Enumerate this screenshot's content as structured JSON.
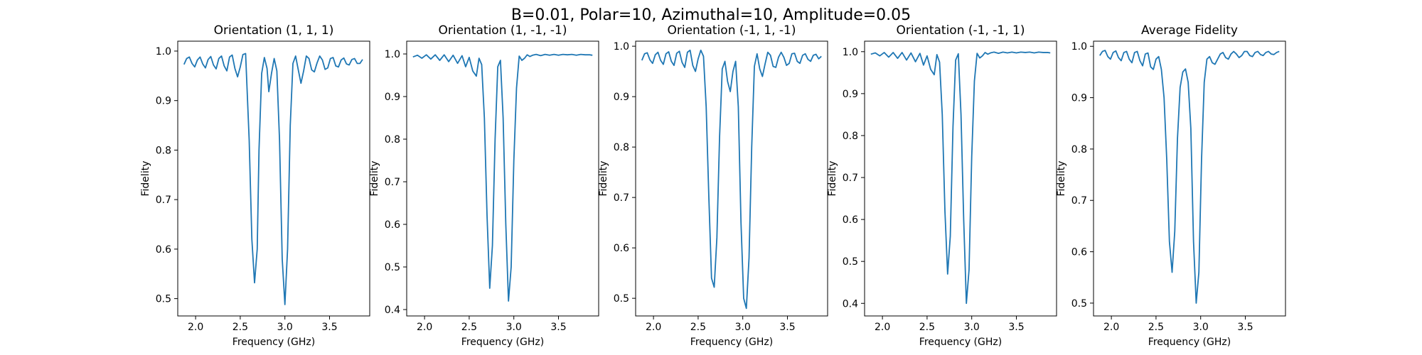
{
  "figure": {
    "suptitle": "B=0.01, Polar=10, Azimuthal=10, Amplitude=0.05"
  },
  "chart_data": [
    {
      "type": "line",
      "title": "Orientation (1, 1, 1)",
      "xlabel": "Frequency (GHz)",
      "ylabel": "Fidelity",
      "xlim": [
        1.8,
        3.95
      ],
      "ylim": [
        0.465,
        1.02
      ],
      "xticks": [
        2.0,
        2.5,
        3.0,
        3.5
      ],
      "xtick_labels": [
        "2.0",
        "2.5",
        "3.0",
        "3.5"
      ],
      "yticks": [
        0.5,
        0.6,
        0.7,
        0.8,
        0.9,
        1.0
      ],
      "ytick_labels": [
        "0.5",
        "0.6",
        "0.7",
        "0.8",
        "0.9",
        "1.0"
      ],
      "grid": false,
      "line_color": "#1f77b4",
      "series": [
        {
          "x": [
            1.87,
            1.9,
            1.93,
            1.96,
            1.99,
            2.02,
            2.05,
            2.08,
            2.11,
            2.14,
            2.17,
            2.2,
            2.23,
            2.26,
            2.29,
            2.32,
            2.35,
            2.38,
            2.41,
            2.44,
            2.47,
            2.5,
            2.53,
            2.56,
            2.6,
            2.63,
            2.66,
            2.69,
            2.71,
            2.74,
            2.77,
            2.8,
            2.82,
            2.85,
            2.88,
            2.91,
            2.94,
            2.97,
            3.0,
            3.03,
            3.06,
            3.09,
            3.12,
            3.15,
            3.18,
            3.21,
            3.24,
            3.27,
            3.3,
            3.33,
            3.36,
            3.39,
            3.42,
            3.45,
            3.48,
            3.51,
            3.54,
            3.57,
            3.6,
            3.63,
            3.66,
            3.69,
            3.72,
            3.75,
            3.78,
            3.81,
            3.84,
            3.87
          ],
          "y": [
            0.973,
            0.985,
            0.988,
            0.975,
            0.968,
            0.982,
            0.988,
            0.974,
            0.966,
            0.983,
            0.989,
            0.972,
            0.964,
            0.985,
            0.99,
            0.97,
            0.96,
            0.988,
            0.992,
            0.965,
            0.948,
            0.968,
            0.993,
            0.995,
            0.82,
            0.62,
            0.532,
            0.6,
            0.8,
            0.955,
            0.987,
            0.965,
            0.918,
            0.955,
            0.985,
            0.96,
            0.82,
            0.58,
            0.488,
            0.6,
            0.85,
            0.975,
            0.99,
            0.962,
            0.935,
            0.96,
            0.99,
            0.985,
            0.962,
            0.958,
            0.976,
            0.99,
            0.982,
            0.963,
            0.966,
            0.985,
            0.987,
            0.97,
            0.968,
            0.982,
            0.986,
            0.974,
            0.972,
            0.983,
            0.985,
            0.975,
            0.975,
            0.983
          ]
        }
      ]
    },
    {
      "type": "line",
      "title": "Orientation (1, -1, -1)",
      "xlabel": "Frequency (GHz)",
      "ylabel": "Fidelity",
      "xlim": [
        1.8,
        3.95
      ],
      "ylim": [
        0.385,
        1.03
      ],
      "xticks": [
        2.0,
        2.5,
        3.0,
        3.5
      ],
      "xtick_labels": [
        "2.0",
        "2.5",
        "3.0",
        "3.5"
      ],
      "yticks": [
        0.4,
        0.5,
        0.6,
        0.7,
        0.8,
        0.9,
        1.0
      ],
      "ytick_labels": [
        "0.4",
        "0.5",
        "0.6",
        "0.7",
        "0.8",
        "0.9",
        "1.0"
      ],
      "grid": false,
      "line_color": "#1f77b4",
      "series": [
        {
          "x": [
            1.87,
            1.92,
            1.97,
            2.02,
            2.07,
            2.12,
            2.17,
            2.22,
            2.27,
            2.32,
            2.37,
            2.42,
            2.46,
            2.5,
            2.54,
            2.58,
            2.61,
            2.64,
            2.67,
            2.7,
            2.73,
            2.76,
            2.79,
            2.82,
            2.85,
            2.88,
            2.91,
            2.94,
            2.97,
            3.0,
            3.03,
            3.06,
            3.09,
            3.12,
            3.15,
            3.18,
            3.21,
            3.25,
            3.3,
            3.35,
            3.4,
            3.45,
            3.5,
            3.55,
            3.6,
            3.65,
            3.7,
            3.75,
            3.8,
            3.85,
            3.88
          ],
          "y": [
            0.993,
            0.997,
            0.99,
            0.998,
            0.988,
            0.998,
            0.985,
            0.998,
            0.982,
            0.997,
            0.978,
            0.996,
            0.97,
            0.992,
            0.96,
            0.948,
            0.99,
            0.975,
            0.85,
            0.62,
            0.45,
            0.55,
            0.8,
            0.97,
            0.985,
            0.85,
            0.6,
            0.42,
            0.5,
            0.75,
            0.92,
            0.995,
            0.985,
            0.99,
            0.998,
            0.994,
            0.997,
            0.999,
            0.996,
            0.999,
            0.997,
            0.999,
            0.997,
            0.999,
            0.998,
            0.999,
            0.997,
            0.999,
            0.998,
            0.998,
            0.997
          ]
        }
      ]
    },
    {
      "type": "line",
      "title": "Orientation (-1, 1, -1)",
      "xlabel": "Frequency (GHz)",
      "ylabel": "Fidelity",
      "xlim": [
        1.8,
        3.95
      ],
      "ylim": [
        0.465,
        1.01
      ],
      "xticks": [
        2.0,
        2.5,
        3.0,
        3.5
      ],
      "xtick_labels": [
        "2.0",
        "2.5",
        "3.0",
        "3.5"
      ],
      "yticks": [
        0.5,
        0.6,
        0.7,
        0.8,
        0.9,
        1.0
      ],
      "ytick_labels": [
        "0.5",
        "0.6",
        "0.7",
        "0.8",
        "0.9",
        "1.0"
      ],
      "grid": false,
      "line_color": "#1f77b4",
      "series": [
        {
          "x": [
            1.87,
            1.9,
            1.93,
            1.96,
            1.99,
            2.02,
            2.05,
            2.08,
            2.11,
            2.14,
            2.17,
            2.2,
            2.23,
            2.26,
            2.29,
            2.32,
            2.35,
            2.38,
            2.41,
            2.44,
            2.47,
            2.5,
            2.53,
            2.56,
            2.59,
            2.62,
            2.65,
            2.68,
            2.71,
            2.74,
            2.77,
            2.8,
            2.83,
            2.86,
            2.89,
            2.92,
            2.95,
            2.98,
            3.01,
            3.04,
            3.07,
            3.1,
            3.13,
            3.16,
            3.19,
            3.22,
            3.25,
            3.28,
            3.31,
            3.34,
            3.37,
            3.4,
            3.43,
            3.46,
            3.49,
            3.52,
            3.55,
            3.58,
            3.61,
            3.64,
            3.67,
            3.7,
            3.73,
            3.76,
            3.79,
            3.82,
            3.85,
            3.88
          ],
          "y": [
            0.972,
            0.985,
            0.987,
            0.973,
            0.966,
            0.983,
            0.988,
            0.972,
            0.964,
            0.985,
            0.989,
            0.97,
            0.962,
            0.986,
            0.99,
            0.968,
            0.958,
            0.988,
            0.992,
            0.962,
            0.95,
            0.975,
            0.992,
            0.98,
            0.88,
            0.7,
            0.54,
            0.522,
            0.62,
            0.82,
            0.955,
            0.97,
            0.93,
            0.91,
            0.95,
            0.97,
            0.88,
            0.65,
            0.5,
            0.48,
            0.58,
            0.8,
            0.96,
            0.985,
            0.955,
            0.94,
            0.965,
            0.988,
            0.982,
            0.96,
            0.958,
            0.978,
            0.988,
            0.978,
            0.962,
            0.966,
            0.985,
            0.986,
            0.97,
            0.966,
            0.982,
            0.985,
            0.974,
            0.97,
            0.982,
            0.984,
            0.975,
            0.98
          ]
        }
      ]
    },
    {
      "type": "line",
      "title": "Orientation (-1, -1, 1)",
      "xlabel": "Frequency (GHz)",
      "ylabel": "Fidelity",
      "xlim": [
        1.8,
        3.95
      ],
      "ylim": [
        0.37,
        1.025
      ],
      "xticks": [
        2.0,
        2.5,
        3.0,
        3.5
      ],
      "xtick_labels": [
        "2.0",
        "2.5",
        "3.0",
        "3.5"
      ],
      "yticks": [
        0.4,
        0.5,
        0.6,
        0.7,
        0.8,
        0.9,
        1.0
      ],
      "ytick_labels": [
        "0.4",
        "0.5",
        "0.6",
        "0.7",
        "0.8",
        "0.9",
        "1.0"
      ],
      "grid": false,
      "line_color": "#1f77b4",
      "series": [
        {
          "x": [
            1.87,
            1.92,
            1.97,
            2.02,
            2.07,
            2.12,
            2.17,
            2.22,
            2.27,
            2.32,
            2.37,
            2.42,
            2.46,
            2.5,
            2.54,
            2.58,
            2.61,
            2.64,
            2.67,
            2.7,
            2.73,
            2.76,
            2.79,
            2.82,
            2.85,
            2.88,
            2.91,
            2.94,
            2.97,
            3.0,
            3.03,
            3.06,
            3.09,
            3.12,
            3.15,
            3.18,
            3.21,
            3.25,
            3.3,
            3.35,
            3.4,
            3.45,
            3.5,
            3.55,
            3.6,
            3.65,
            3.7,
            3.75,
            3.8,
            3.85,
            3.88
          ],
          "y": [
            0.994,
            0.997,
            0.99,
            0.998,
            0.987,
            0.998,
            0.984,
            0.998,
            0.98,
            0.997,
            0.976,
            0.996,
            0.968,
            0.99,
            0.958,
            0.945,
            0.993,
            0.975,
            0.85,
            0.62,
            0.47,
            0.56,
            0.82,
            0.98,
            0.995,
            0.85,
            0.6,
            0.4,
            0.48,
            0.75,
            0.93,
            0.996,
            0.985,
            0.99,
            0.998,
            0.994,
            0.997,
            0.999,
            0.996,
            0.999,
            0.997,
            0.999,
            0.997,
            0.999,
            0.998,
            0.999,
            0.997,
            0.999,
            0.998,
            0.998,
            0.997
          ]
        }
      ]
    },
    {
      "type": "line",
      "title": "Average Fidelity",
      "xlabel": "Frequency (GHz)",
      "ylabel": "Fidelity",
      "xlim": [
        1.8,
        3.95
      ],
      "ylim": [
        0.475,
        1.01
      ],
      "xticks": [
        2.0,
        2.5,
        3.0,
        3.5
      ],
      "xtick_labels": [
        "2.0",
        "2.5",
        "3.0",
        "3.5"
      ],
      "yticks": [
        0.5,
        0.6,
        0.7,
        0.8,
        0.9,
        1.0
      ],
      "ytick_labels": [
        "0.5",
        "0.6",
        "0.7",
        "0.8",
        "0.9",
        "1.0"
      ],
      "grid": false,
      "line_color": "#1f77b4",
      "series": [
        {
          "x": [
            1.87,
            1.9,
            1.93,
            1.96,
            1.99,
            2.02,
            2.05,
            2.08,
            2.11,
            2.14,
            2.17,
            2.2,
            2.23,
            2.26,
            2.29,
            2.32,
            2.35,
            2.38,
            2.41,
            2.44,
            2.47,
            2.5,
            2.53,
            2.56,
            2.59,
            2.62,
            2.65,
            2.68,
            2.71,
            2.74,
            2.77,
            2.8,
            2.83,
            2.86,
            2.89,
            2.92,
            2.95,
            2.98,
            3.01,
            3.04,
            3.07,
            3.1,
            3.13,
            3.16,
            3.19,
            3.22,
            3.25,
            3.28,
            3.31,
            3.34,
            3.37,
            3.4,
            3.43,
            3.46,
            3.49,
            3.52,
            3.55,
            3.58,
            3.61,
            3.64,
            3.67,
            3.7,
            3.73,
            3.76,
            3.79,
            3.82,
            3.85,
            3.88
          ],
          "y": [
            0.982,
            0.99,
            0.992,
            0.98,
            0.975,
            0.988,
            0.991,
            0.978,
            0.972,
            0.988,
            0.99,
            0.975,
            0.968,
            0.988,
            0.99,
            0.972,
            0.962,
            0.985,
            0.987,
            0.96,
            0.955,
            0.975,
            0.98,
            0.955,
            0.9,
            0.78,
            0.62,
            0.56,
            0.64,
            0.82,
            0.92,
            0.95,
            0.956,
            0.93,
            0.84,
            0.62,
            0.5,
            0.56,
            0.78,
            0.93,
            0.975,
            0.98,
            0.968,
            0.965,
            0.975,
            0.985,
            0.988,
            0.978,
            0.975,
            0.985,
            0.99,
            0.985,
            0.978,
            0.982,
            0.99,
            0.99,
            0.982,
            0.98,
            0.988,
            0.99,
            0.984,
            0.982,
            0.988,
            0.99,
            0.985,
            0.984,
            0.988,
            0.99
          ]
        }
      ]
    }
  ]
}
